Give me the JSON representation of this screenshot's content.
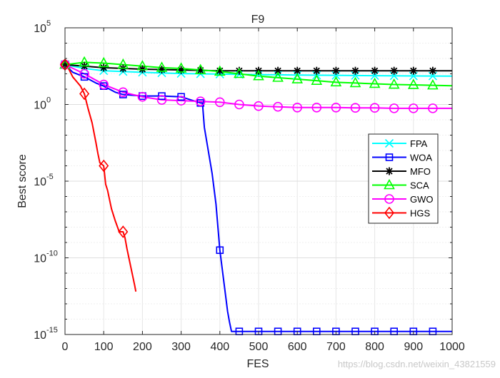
{
  "watermark": "https://blog.csdn.net/weixin_43821559",
  "chart_data": {
    "type": "line",
    "title": "F9",
    "xlabel": "FES",
    "ylabel": "Best score",
    "xscale": "linear",
    "yscale": "log",
    "xlim": [
      0,
      1000
    ],
    "ylim_exp": [
      -15,
      5
    ],
    "xticks": [
      0,
      100,
      200,
      300,
      400,
      500,
      600,
      700,
      800,
      900,
      1000
    ],
    "xtick_labels": [
      "0",
      "100",
      "200",
      "300",
      "400",
      "500",
      "600",
      "700",
      "800",
      "900",
      "1000"
    ],
    "yticks_exp": [
      -15,
      -10,
      -5,
      0,
      5
    ],
    "ytick_labels": [
      {
        "base": "10",
        "exp": "-15"
      },
      {
        "base": "10",
        "exp": "-10"
      },
      {
        "base": "10",
        "exp": "-5"
      },
      {
        "base": "10",
        "exp": "0"
      },
      {
        "base": "10",
        "exp": "5"
      }
    ],
    "grid": true,
    "legend_position": "right-center",
    "series": [
      {
        "name": "FPA",
        "color": "#00FFFF",
        "marker": "x",
        "x": [
          0,
          50,
          100,
          200,
          300,
          400,
          500,
          600,
          700,
          800,
          900,
          1000
        ],
        "log10y": [
          2.6,
          2.35,
          2.2,
          2.1,
          2.02,
          1.98,
          1.95,
          1.92,
          1.9,
          1.88,
          1.86,
          1.85
        ],
        "marker_x": [
          0,
          50,
          100,
          150,
          200,
          250,
          300,
          350,
          400,
          450,
          500,
          550,
          600,
          650,
          700,
          750,
          800,
          850,
          900,
          950
        ]
      },
      {
        "name": "WOA",
        "color": "#0000FF",
        "marker": "square",
        "x": [
          0,
          20,
          50,
          80,
          100,
          130,
          150,
          200,
          250,
          300,
          350,
          355,
          360,
          370,
          380,
          390,
          395,
          400,
          405,
          410,
          415,
          420,
          425,
          430,
          1000
        ],
        "log10y": [
          2.6,
          2.1,
          1.8,
          1.4,
          1.2,
          0.8,
          0.65,
          0.55,
          0.55,
          0.5,
          0.1,
          0.1,
          -1.5,
          -3.0,
          -4.5,
          -6.5,
          -8.0,
          -9.5,
          -10.5,
          -11.5,
          -12.5,
          -13.5,
          -14.2,
          -14.8,
          -14.8
        ],
        "marker_x": [
          0,
          50,
          100,
          150,
          200,
          250,
          300,
          350,
          400,
          450,
          500,
          550,
          600,
          650,
          700,
          750,
          800,
          850,
          900,
          950
        ]
      },
      {
        "name": "MFO",
        "color": "#000000",
        "marker": "asterisk",
        "x": [
          0,
          50,
          100,
          200,
          300,
          400,
          500,
          600,
          700,
          800,
          900,
          1000
        ],
        "log10y": [
          2.6,
          2.5,
          2.4,
          2.3,
          2.25,
          2.2,
          2.2,
          2.2,
          2.2,
          2.2,
          2.2,
          2.2
        ],
        "marker_x": [
          0,
          50,
          100,
          150,
          200,
          250,
          300,
          350,
          400,
          450,
          500,
          550,
          600,
          650,
          700,
          750,
          800,
          850,
          900,
          950
        ]
      },
      {
        "name": "SCA",
        "color": "#00FF00",
        "marker": "triangle",
        "x": [
          0,
          50,
          100,
          150,
          200,
          250,
          300,
          350,
          400,
          450,
          500,
          550,
          600,
          650,
          700,
          750,
          800,
          850,
          900,
          950,
          1000
        ],
        "log10y": [
          2.6,
          2.75,
          2.7,
          2.6,
          2.5,
          2.4,
          2.35,
          2.25,
          2.15,
          2.0,
          1.85,
          1.75,
          1.65,
          1.55,
          1.45,
          1.4,
          1.35,
          1.3,
          1.28,
          1.25,
          1.22
        ],
        "marker_x": [
          0,
          50,
          100,
          150,
          200,
          250,
          300,
          350,
          400,
          450,
          500,
          550,
          600,
          650,
          700,
          750,
          800,
          850,
          900,
          950
        ]
      },
      {
        "name": "GWO",
        "color": "#FF00FF",
        "marker": "circle",
        "x": [
          0,
          50,
          100,
          150,
          200,
          250,
          300,
          350,
          400,
          450,
          500,
          550,
          600,
          650,
          700,
          750,
          800,
          850,
          900,
          950,
          1000
        ],
        "log10y": [
          2.6,
          2.0,
          1.3,
          0.8,
          0.5,
          0.3,
          0.25,
          0.2,
          0.15,
          0.0,
          -0.1,
          -0.15,
          -0.2,
          -0.2,
          -0.2,
          -0.22,
          -0.22,
          -0.25,
          -0.25,
          -0.25,
          -0.25
        ],
        "marker_x": [
          0,
          50,
          100,
          150,
          200,
          250,
          300,
          350,
          400,
          450,
          500,
          550,
          600,
          650,
          700,
          750,
          800,
          850,
          900,
          950
        ]
      },
      {
        "name": "HGS",
        "color": "#FF0000",
        "marker": "diamond",
        "x": [
          0,
          10,
          20,
          30,
          40,
          50,
          60,
          70,
          80,
          85,
          90,
          95,
          100,
          105,
          110,
          120,
          130,
          140,
          150,
          155,
          160,
          165,
          170,
          175,
          180,
          183
        ],
        "log10y": [
          2.6,
          2.3,
          1.8,
          1.5,
          1.2,
          0.7,
          -0.3,
          -1.2,
          -2.5,
          -3.2,
          -3.8,
          -3.9,
          -4.0,
          -5.2,
          -5.6,
          -6.8,
          -7.6,
          -8.3,
          -8.3,
          -8.7,
          -9.4,
          -10.0,
          -10.6,
          -11.2,
          -11.8,
          -12.2
        ],
        "marker_x": [
          0,
          50,
          100,
          150
        ]
      }
    ]
  }
}
